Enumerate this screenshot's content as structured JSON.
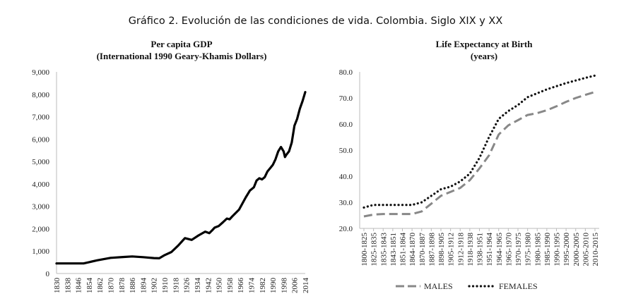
{
  "figure_title": "Gráfico 2. Evolución de las condiciones de vida. Colombia. Siglo XIX y XX",
  "chart_data": [
    {
      "type": "line",
      "title": "Per capita GDP",
      "subtitle": "(International 1990 Geary-Khamis Dollars)",
      "ylim": [
        0,
        9000
      ],
      "yticks": [
        "0",
        "1,000",
        "2,000",
        "3,000",
        "4,000",
        "5,000",
        "6,000",
        "7,000",
        "8,000",
        "9,000"
      ],
      "xlim": [
        1830,
        2014
      ],
      "xticks": [
        "1830",
        "1838",
        "1846",
        "1854",
        "1862",
        "1870",
        "1878",
        "1886",
        "1894",
        "1902",
        "1910",
        "1918",
        "1926",
        "1934",
        "1942",
        "1950",
        "1958",
        "1966",
        "1974",
        "1982",
        "1990",
        "1998",
        "2006",
        "2014"
      ],
      "color": "#000000",
      "series": [
        {
          "x": [
            1830,
            1840,
            1850,
            1860,
            1870,
            1880,
            1886,
            1894,
            1902,
            1906,
            1910,
            1915,
            1920,
            1925,
            1930,
            1932,
            1935,
            1940,
            1943,
            1945,
            1947,
            1950,
            1953,
            1956,
            1958,
            1960,
            1965,
            1970,
            1973,
            1976,
            1978,
            1980,
            1982,
            1984,
            1986,
            1988,
            1990,
            1992,
            1994,
            1996,
            1998,
            1999,
            2000,
            2002,
            2004,
            2006,
            2008,
            2010,
            2012,
            2014
          ],
          "values": [
            450,
            450,
            450,
            590,
            700,
            740,
            760,
            730,
            690,
            680,
            820,
            960,
            1250,
            1580,
            1500,
            1580,
            1700,
            1870,
            1800,
            1920,
            2050,
            2120,
            2280,
            2450,
            2420,
            2550,
            2850,
            3400,
            3700,
            3850,
            4150,
            4250,
            4200,
            4300,
            4550,
            4700,
            4850,
            5100,
            5450,
            5650,
            5450,
            5200,
            5300,
            5450,
            5850,
            6600,
            6900,
            7350,
            7700,
            8100
          ]
        }
      ]
    },
    {
      "type": "line",
      "title": "Life Expectancy at Birth",
      "subtitle": "(years)",
      "ylim": [
        20,
        80
      ],
      "yticks": [
        "20.0",
        "30.0",
        "40.0",
        "50.0",
        "60.0",
        "70.0",
        "80.0"
      ],
      "categories": [
        "1800-1825",
        "1825-1835",
        "1835-1843",
        "1843-1851",
        "1851-1864",
        "1864-1870",
        "1870-1887",
        "1887-1898",
        "1898-1905",
        "1905-1912",
        "1912-1918",
        "1918-1938",
        "1938-1951",
        "1951-1964",
        "1964-1965",
        "1965-1970",
        "1970-1975",
        "1975-1980",
        "1980-1985",
        "1985-1990",
        "1990-1995",
        "1995-2000",
        "2000-2005",
        "2005-2010",
        "2010-2015"
      ],
      "legend_position": "bottom",
      "series": [
        {
          "name": "MALES",
          "color": "#888888",
          "values": [
            24.6,
            25.3,
            25.5,
            25.5,
            25.5,
            25.5,
            26.5,
            29.5,
            32.5,
            34,
            35.5,
            38.5,
            43,
            48,
            56,
            59.5,
            61.5,
            63.5,
            64.2,
            65.3,
            66.8,
            68.5,
            70,
            71.2,
            72.3
          ]
        },
        {
          "name": "FEMALES",
          "color": "#111111",
          "values": [
            28,
            29,
            29,
            29,
            29,
            29,
            30,
            32.5,
            35,
            36,
            38,
            41,
            47,
            55,
            62,
            65,
            67.3,
            70.3,
            71.8,
            73.3,
            74.5,
            75.7,
            76.7,
            77.7,
            78.6
          ]
        }
      ]
    }
  ]
}
